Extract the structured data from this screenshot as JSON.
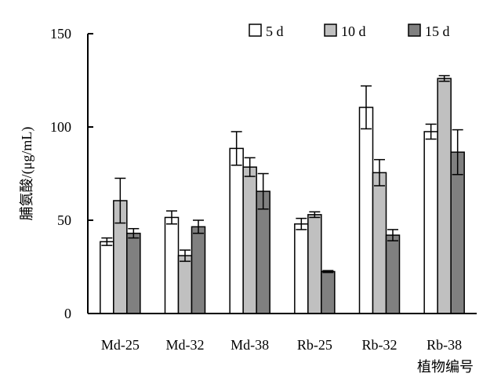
{
  "chart_data": {
    "type": "bar",
    "title": "",
    "xlabel": "植物编号",
    "ylabel": "脯氨酸/(μg/mL)",
    "ylim": [
      0,
      150
    ],
    "yticks": [
      0,
      50,
      100,
      150
    ],
    "categories": [
      "Md-25",
      "Md-32",
      "Md-38",
      "Rb-25",
      "Rb-32",
      "Rb-38"
    ],
    "series": [
      {
        "name": "5 d",
        "color": "#ffffff",
        "values": [
          38.5,
          51.5,
          88.5,
          48.0,
          110.5,
          97.5
        ],
        "errors": [
          2.0,
          3.5,
          9.0,
          3.0,
          11.5,
          4.0
        ]
      },
      {
        "name": "10 d",
        "color": "#c0c0c0",
        "values": [
          60.5,
          31.0,
          78.5,
          53.0,
          75.5,
          126.0
        ],
        "errors": [
          12.0,
          3.0,
          5.0,
          1.5,
          7.0,
          1.5
        ]
      },
      {
        "name": "15 d",
        "color": "#808080",
        "values": [
          43.0,
          46.5,
          65.5,
          22.5,
          42.0,
          86.5
        ],
        "errors": [
          2.5,
          3.5,
          9.5,
          0.5,
          3.0,
          12.0
        ]
      }
    ],
    "legend_position": "top-right",
    "grid": false,
    "error_bars": true
  }
}
